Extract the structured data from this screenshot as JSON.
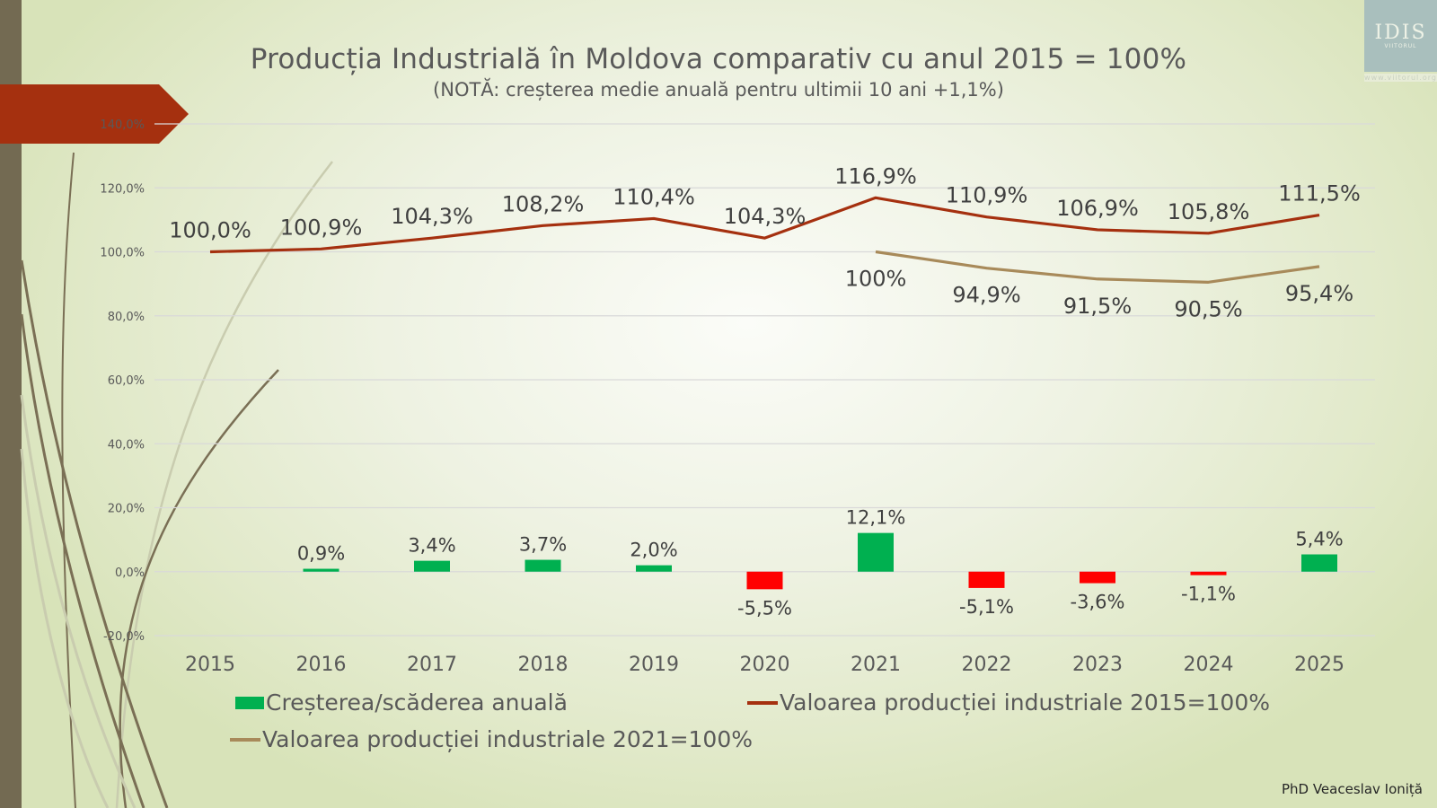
{
  "slide": {
    "title": "Producția Industrială în Moldova comparativ cu anul 2015 = 100%",
    "subtitle": "(NOTĂ: creșterea medie anuală pentru ultimii 10 ani +1,1%)",
    "author": "PhD Veaceslav Ioniță",
    "logo": {
      "main": "IDIS",
      "sub": "VIITORUL",
      "stars": "★ ★ ★ ★ ★ ★ ★ ★ ★ ★ ★ ★",
      "url": "www.viitorul.org"
    }
  },
  "chart_data": {
    "type": "bar+line",
    "title": "Producția Industrială în Moldova comparativ cu anul 2015 = 100%",
    "subtitle": "(NOTĂ: creșterea medie anuală pentru ultimii 10 ani +1,1%)",
    "categories": [
      "2015",
      "2016",
      "2017",
      "2018",
      "2019",
      "2020",
      "2021",
      "2022",
      "2023",
      "2024",
      "2025"
    ],
    "ylim": [
      -20,
      140
    ],
    "yticks": [
      -20,
      0,
      20,
      40,
      60,
      80,
      100,
      120,
      140
    ],
    "ytick_labels": [
      "-20,0%",
      "0,0%",
      "20,0%",
      "40,0%",
      "60,0%",
      "80,0%",
      "100,0%",
      "120,0%",
      "140,0%"
    ],
    "grid": true,
    "legend_position": "bottom",
    "series": [
      {
        "name": "Creșterea/scăderea anuală",
        "type": "bar",
        "color_positive": "#00b050",
        "color_negative": "#ff0000",
        "values": [
          null,
          0.9,
          3.4,
          3.7,
          2.0,
          -5.5,
          12.1,
          -5.1,
          -3.6,
          -1.1,
          5.4
        ],
        "labels": [
          null,
          "0,9%",
          "3,4%",
          "3,7%",
          "2,0%",
          "-5,5%",
          "12,1%",
          "-5,1%",
          "-3,6%",
          "-1,1%",
          "5,4%"
        ]
      },
      {
        "name": "Valoarea producției industriale 2015=100%",
        "type": "line",
        "color": "#a5300f",
        "values": [
          100.0,
          100.9,
          104.3,
          108.2,
          110.4,
          104.3,
          116.9,
          110.9,
          106.9,
          105.8,
          111.5
        ],
        "labels": [
          "100,0%",
          "100,9%",
          "104,3%",
          "108,2%",
          "110,4%",
          "104,3%",
          "116,9%",
          "110,9%",
          "106,9%",
          "105,8%",
          "111,5%"
        ]
      },
      {
        "name": "Valoarea producției industriale 2021=100%",
        "type": "line",
        "color": "#a88a5a",
        "values": [
          null,
          null,
          null,
          null,
          null,
          null,
          100,
          94.9,
          91.5,
          90.5,
          95.4
        ],
        "labels": [
          null,
          null,
          null,
          null,
          null,
          null,
          "100%",
          "94,9%",
          "91,5%",
          "90,5%",
          "95,4%"
        ]
      }
    ]
  },
  "legend": {
    "items": [
      {
        "label": "Creșterea/scăderea anuală",
        "color": "#00b050"
      },
      {
        "label": "Valoarea producției industriale 2015=100%",
        "color": "#a5300f"
      },
      {
        "label": "Valoarea producției industriale 2021=100%",
        "color": "#a88a5a"
      }
    ]
  }
}
